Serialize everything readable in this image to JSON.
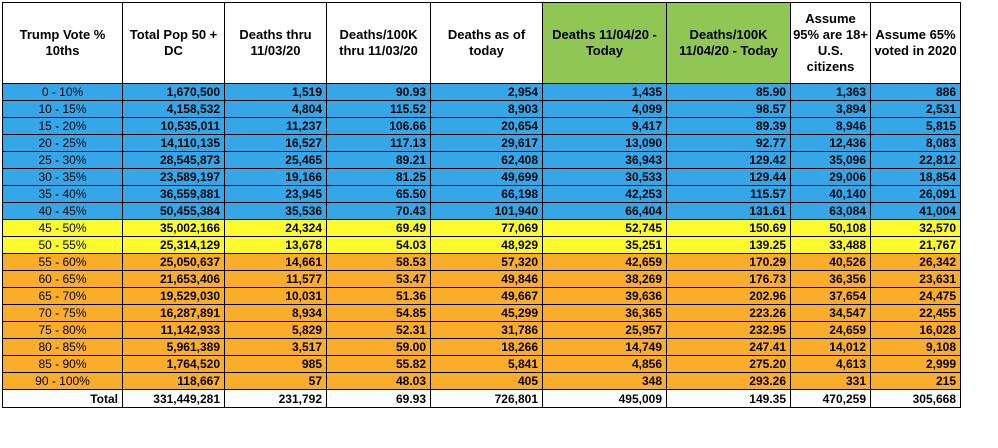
{
  "colors": {
    "header_highlight": "#8fc654",
    "band_low": "#35a7e8",
    "band_mid": "#fdfa2e",
    "band_high": "#f9ad2a"
  },
  "headers": [
    "Trump Vote % 10ths",
    "Total Pop 50 + DC",
    "Deaths thru 11/03/20",
    "Deaths/100K thru 11/03/20",
    "Deaths as of today",
    "Deaths 11/04/20 - Today",
    "Deaths/100K 11/04/20 - Today",
    "Assume 95% are 18+ U.S. citizens",
    "Assume 65% voted in 2020"
  ],
  "rows": [
    {
      "band": "blue",
      "cells": [
        "0 - 10%",
        "1,670,500",
        "1,519",
        "90.93",
        "2,954",
        "1,435",
        "85.90",
        "1,363",
        "886"
      ]
    },
    {
      "band": "blue",
      "cells": [
        "10 - 15%",
        "4,158,532",
        "4,804",
        "115.52",
        "8,903",
        "4,099",
        "98.57",
        "3,894",
        "2,531"
      ]
    },
    {
      "band": "blue",
      "cells": [
        "15 - 20%",
        "10,535,011",
        "11,237",
        "106.66",
        "20,654",
        "9,417",
        "89.39",
        "8,946",
        "5,815"
      ]
    },
    {
      "band": "blue",
      "cells": [
        "20 - 25%",
        "14,110,135",
        "16,527",
        "117.13",
        "29,617",
        "13,090",
        "92.77",
        "12,436",
        "8,083"
      ]
    },
    {
      "band": "blue",
      "cells": [
        "25 - 30%",
        "28,545,873",
        "25,465",
        "89.21",
        "62,408",
        "36,943",
        "129.42",
        "35,096",
        "22,812"
      ]
    },
    {
      "band": "blue",
      "cells": [
        "30 - 35%",
        "23,589,197",
        "19,166",
        "81.25",
        "49,699",
        "30,533",
        "129.44",
        "29,006",
        "18,854"
      ]
    },
    {
      "band": "blue",
      "cells": [
        "35 - 40%",
        "36,559,881",
        "23,945",
        "65.50",
        "66,198",
        "42,253",
        "115.57",
        "40,140",
        "26,091"
      ]
    },
    {
      "band": "blue",
      "cells": [
        "40 - 45%",
        "50,455,384",
        "35,536",
        "70.43",
        "101,940",
        "66,404",
        "131.61",
        "63,084",
        "41,004"
      ]
    },
    {
      "band": "yellow",
      "cells": [
        "45 - 50%",
        "35,002,166",
        "24,324",
        "69.49",
        "77,069",
        "52,745",
        "150.69",
        "50,108",
        "32,570"
      ]
    },
    {
      "band": "yellow",
      "cells": [
        "50 - 55%",
        "25,314,129",
        "13,678",
        "54.03",
        "48,929",
        "35,251",
        "139.25",
        "33,488",
        "21,767"
      ]
    },
    {
      "band": "orange",
      "cells": [
        "55 - 60%",
        "25,050,637",
        "14,661",
        "58.53",
        "57,320",
        "42,659",
        "170.29",
        "40,526",
        "26,342"
      ]
    },
    {
      "band": "orange",
      "cells": [
        "60 - 65%",
        "21,653,406",
        "11,577",
        "53.47",
        "49,846",
        "38,269",
        "176.73",
        "36,356",
        "23,631"
      ]
    },
    {
      "band": "orange",
      "cells": [
        "65 - 70%",
        "19,529,030",
        "10,031",
        "51.36",
        "49,667",
        "39,636",
        "202.96",
        "37,654",
        "24,475"
      ]
    },
    {
      "band": "orange",
      "cells": [
        "70 - 75%",
        "16,287,891",
        "8,934",
        "54.85",
        "45,299",
        "36,365",
        "223.26",
        "34,547",
        "22,455"
      ]
    },
    {
      "band": "orange",
      "cells": [
        "75 - 80%",
        "11,142,933",
        "5,829",
        "52.31",
        "31,786",
        "25,957",
        "232.95",
        "24,659",
        "16,028"
      ]
    },
    {
      "band": "orange",
      "cells": [
        "80 - 85%",
        "5,961,389",
        "3,517",
        "59.00",
        "18,266",
        "14,749",
        "247.41",
        "14,012",
        "9,108"
      ]
    },
    {
      "band": "orange",
      "cells": [
        "85 - 90%",
        "1,764,520",
        "985",
        "55.82",
        "5,841",
        "4,856",
        "275.20",
        "4,613",
        "2,999"
      ]
    },
    {
      "band": "orange",
      "cells": [
        "90 - 100%",
        "118,667",
        "57",
        "48.03",
        "405",
        "348",
        "293.26",
        "331",
        "215"
      ]
    }
  ],
  "total": [
    "Total",
    "331,449,281",
    "231,792",
    "69.93",
    "726,801",
    "495,009",
    "149.35",
    "470,259",
    "305,668"
  ]
}
